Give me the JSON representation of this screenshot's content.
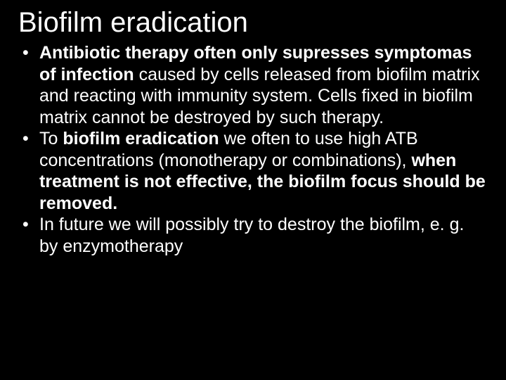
{
  "title": "Biofilm eradication",
  "bullets": [
    {
      "b1": "Antibiotic therapy often only supresses symptomas of infection",
      "r1": " caused by cells released from biofilm matrix and reacting with immunity system. Cells fixed in biofilm matrix cannot be destroyed by such therapy."
    },
    {
      "r1": "To ",
      "b1": "biofilm eradication",
      "r2": " we often to use high ATB concentrations (monotherapy or combinations), ",
      "b2": "when treatment is not effective, the biofilm focus should be removed."
    },
    {
      "r1": "In future we will possibly try to destroy the biofilm, e. g. by enzymotherapy"
    }
  ],
  "colors": {
    "background": "#000000",
    "text": "#ffffff"
  },
  "typography": {
    "title_fontsize": 40,
    "body_fontsize": 25,
    "font_family": "Verdana"
  }
}
